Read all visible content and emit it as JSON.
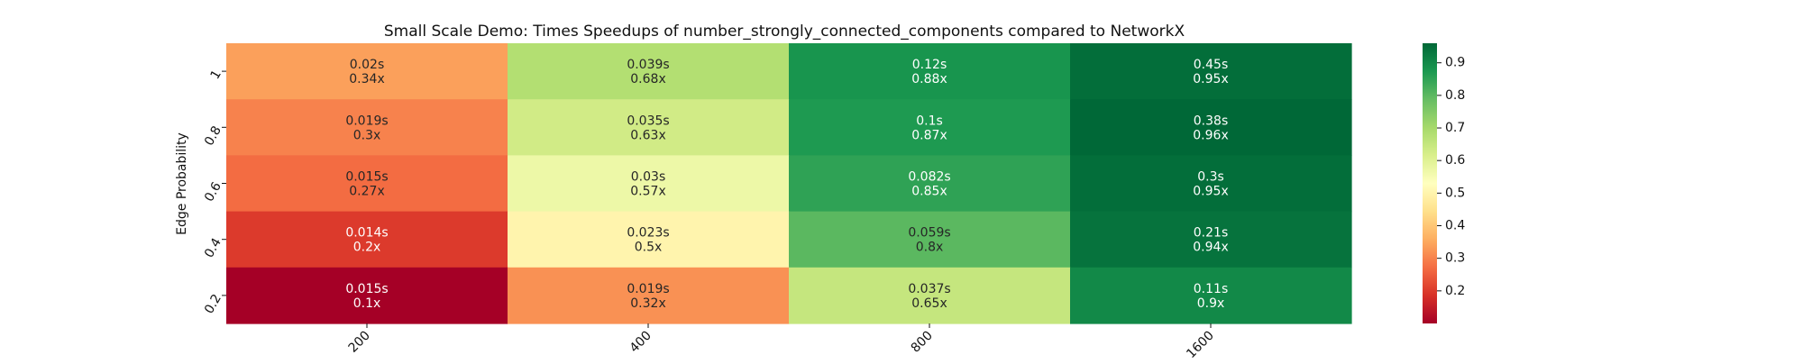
{
  "chart_data": {
    "type": "heatmap",
    "title": "Small Scale Demo: Times Speedups of number_strongly_connected_components compared to NetworkX",
    "xlabel": "",
    "ylabel": "Edge Probability",
    "x_categories": [
      "200",
      "400",
      "800",
      "1600"
    ],
    "y_categories": [
      "1",
      "0.8",
      "0.6",
      "0.4",
      "0.2"
    ],
    "rows": [
      {
        "y": "1",
        "cells": [
          {
            "x": "200",
            "time": "0.02s",
            "speedup_label": "0.34x",
            "value": 0.34
          },
          {
            "x": "400",
            "time": "0.039s",
            "speedup_label": "0.68x",
            "value": 0.68
          },
          {
            "x": "800",
            "time": "0.12s",
            "speedup_label": "0.88x",
            "value": 0.88
          },
          {
            "x": "1600",
            "time": "0.45s",
            "speedup_label": "0.95x",
            "value": 0.95
          }
        ]
      },
      {
        "y": "0.8",
        "cells": [
          {
            "x": "200",
            "time": "0.019s",
            "speedup_label": "0.3x",
            "value": 0.3
          },
          {
            "x": "400",
            "time": "0.035s",
            "speedup_label": "0.63x",
            "value": 0.63
          },
          {
            "x": "800",
            "time": "0.1s",
            "speedup_label": "0.87x",
            "value": 0.87
          },
          {
            "x": "1600",
            "time": "0.38s",
            "speedup_label": "0.96x",
            "value": 0.96
          }
        ]
      },
      {
        "y": "0.6",
        "cells": [
          {
            "x": "200",
            "time": "0.015s",
            "speedup_label": "0.27x",
            "value": 0.27
          },
          {
            "x": "400",
            "time": "0.03s",
            "speedup_label": "0.57x",
            "value": 0.57
          },
          {
            "x": "800",
            "time": "0.082s",
            "speedup_label": "0.85x",
            "value": 0.85
          },
          {
            "x": "1600",
            "time": "0.3s",
            "speedup_label": "0.95x",
            "value": 0.95
          }
        ]
      },
      {
        "y": "0.4",
        "cells": [
          {
            "x": "200",
            "time": "0.014s",
            "speedup_label": "0.2x",
            "value": 0.2
          },
          {
            "x": "400",
            "time": "0.023s",
            "speedup_label": "0.5x",
            "value": 0.5
          },
          {
            "x": "800",
            "time": "0.059s",
            "speedup_label": "0.8x",
            "value": 0.8
          },
          {
            "x": "1600",
            "time": "0.21s",
            "speedup_label": "0.94x",
            "value": 0.94
          }
        ]
      },
      {
        "y": "0.2",
        "cells": [
          {
            "x": "200",
            "time": "0.015s",
            "speedup_label": "0.1x",
            "value": 0.1
          },
          {
            "x": "400",
            "time": "0.019s",
            "speedup_label": "0.32x",
            "value": 0.32
          },
          {
            "x": "800",
            "time": "0.037s",
            "speedup_label": "0.65x",
            "value": 0.65
          },
          {
            "x": "1600",
            "time": "0.11s",
            "speedup_label": "0.9x",
            "value": 0.9
          }
        ]
      }
    ],
    "colormap": "RdYlGn",
    "colorbar": {
      "range": [
        0.1,
        0.96
      ],
      "ticks": [
        0.2,
        0.3,
        0.4,
        0.5,
        0.6,
        0.7,
        0.8,
        0.9
      ],
      "tick_labels": [
        "0.2",
        "0.3",
        "0.4",
        "0.5",
        "0.6",
        "0.7",
        "0.8",
        "0.9"
      ]
    },
    "grid": false,
    "legend": "colorbar-right"
  }
}
